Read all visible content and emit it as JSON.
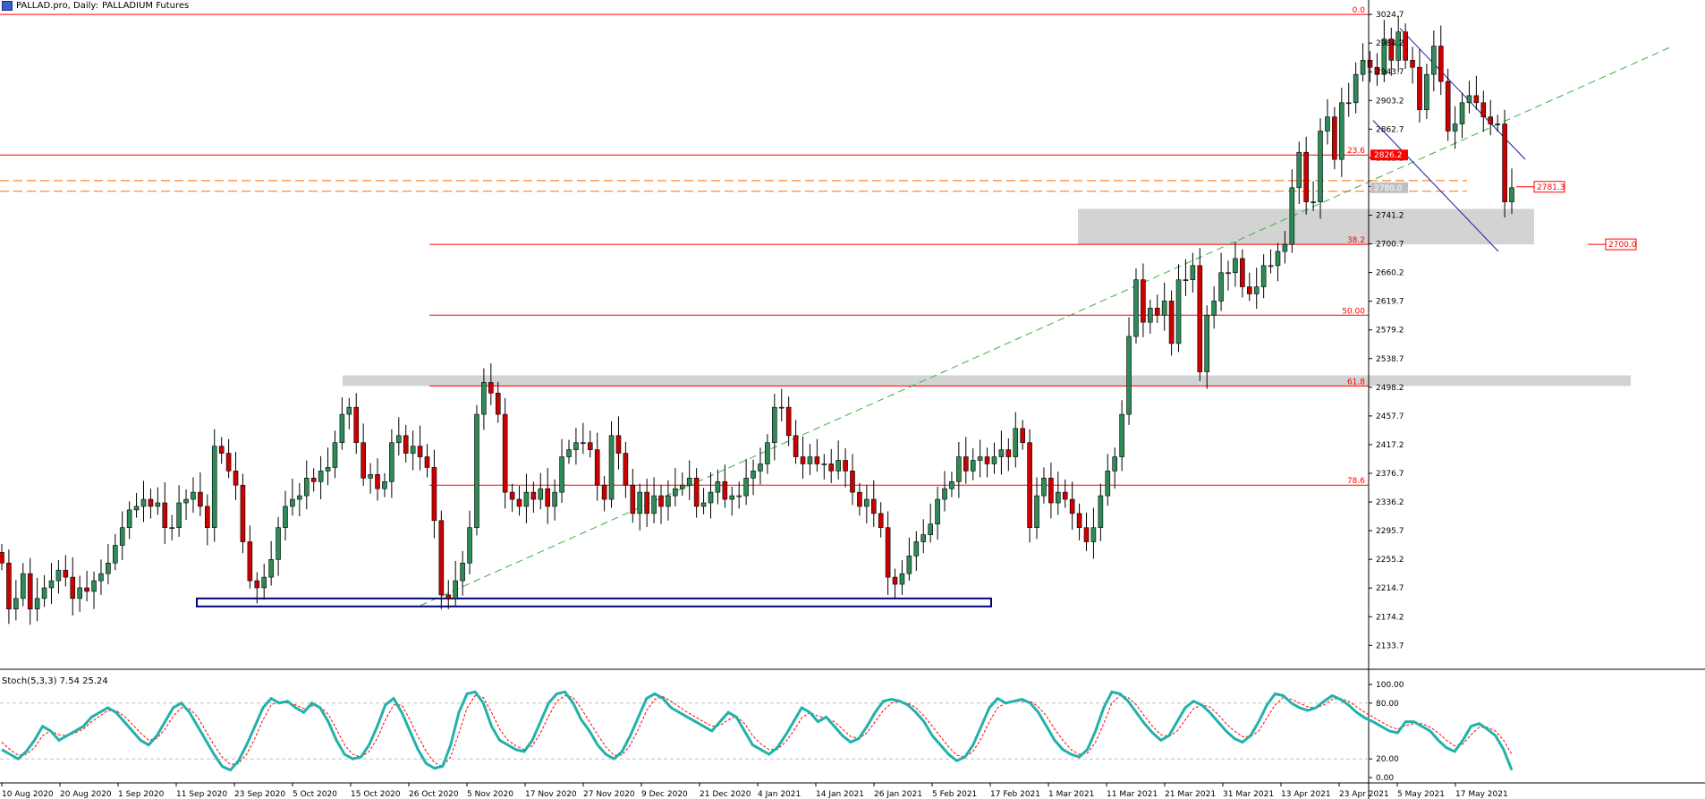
{
  "header": {
    "symbol": "PALLAD.pro, Daily:",
    "description": "PALLADIUM Futures"
  },
  "stoch_header": {
    "label": "Stoch(5,3,3)",
    "main_value": "7.54",
    "signal_value": "25.24"
  },
  "colors": {
    "bull": "#2e8b57",
    "bear": "#cc0000",
    "fib_line": "#ff0000",
    "trend_line": "#3cb043",
    "channel": "#1a1aa0",
    "zone": "#d3d3d3",
    "box": "#000080",
    "stoch_main": "#20b2aa",
    "stoch_signal": "#ff0000",
    "dashed_orange": "#ff6a00"
  },
  "chart_data": {
    "type": "candlestick",
    "price_axis": {
      "min": 2100,
      "max": 3040,
      "ticks": [
        "3024.7",
        "2984.2",
        "2943.7",
        "2903.2",
        "2862.7",
        "2822.2",
        "2781.7",
        "2741.2",
        "2700.7",
        "2660.2",
        "2619.7",
        "2579.2",
        "2538.7",
        "2498.2",
        "2457.7",
        "2417.2",
        "2376.7",
        "2336.2",
        "2295.7",
        "2255.2",
        "2214.7",
        "2174.2",
        "2133.7"
      ],
      "price_tags": [
        {
          "text": "2826.2",
          "value": 2826.2,
          "color": "#ff0000"
        },
        {
          "text": "2780.0",
          "value": 2780.0,
          "color": "#c0c0c0"
        }
      ]
    },
    "date_axis": [
      "10 Aug 2020",
      "20 Aug 2020",
      "1 Sep 2020",
      "11 Sep 2020",
      "23 Sep 2020",
      "5 Oct 2020",
      "15 Oct 2020",
      "26 Oct 2020",
      "5 Nov 2020",
      "17 Nov 2020",
      "27 Nov 2020",
      "9 Dec 2020",
      "21 Dec 2020",
      "4 Jan 2021",
      "14 Jan 2021",
      "26 Jan 2021",
      "5 Feb 2021",
      "17 Feb 2021",
      "1 Mar 2021",
      "11 Mar 2021",
      "21 Mar 2021",
      "31 Mar 2021",
      "13 Apr 2021",
      "23 Apr 2021",
      "5 May 2021",
      "17 May 2021"
    ],
    "fibonacci": [
      {
        "label": "0.0",
        "price": 3024.7
      },
      {
        "label": "23.6",
        "price": 2826.2
      },
      {
        "label": "38.2",
        "price": 2700.0
      },
      {
        "label": "50.00",
        "price": 2600.0
      },
      {
        "label": "61.8",
        "price": 2500.0
      },
      {
        "label": "78.6",
        "price": 2360.0
      }
    ],
    "annotations": [
      {
        "text": "2781.3",
        "price": 2781.3
      },
      {
        "text": "2700.0",
        "price": 2700.0
      }
    ],
    "closes": [
      2250,
      2185,
      2200,
      2235,
      2185,
      2200,
      2215,
      2225,
      2240,
      2230,
      2200,
      2215,
      2210,
      2225,
      2235,
      2250,
      2275,
      2300,
      2325,
      2330,
      2340,
      2330,
      2335,
      2300,
      2300,
      2335,
      2340,
      2350,
      2330,
      2300,
      2415,
      2405,
      2380,
      2360,
      2280,
      2225,
      2215,
      2230,
      2255,
      2300,
      2330,
      2340,
      2345,
      2370,
      2365,
      2380,
      2385,
      2420,
      2460,
      2470,
      2420,
      2370,
      2375,
      2355,
      2365,
      2420,
      2430,
      2405,
      2415,
      2400,
      2385,
      2310,
      2205,
      2200,
      2225,
      2250,
      2300,
      2460,
      2505,
      2490,
      2460,
      2350,
      2340,
      2330,
      2350,
      2340,
      2355,
      2330,
      2350,
      2400,
      2410,
      2420,
      2420,
      2410,
      2360,
      2340,
      2430,
      2405,
      2360,
      2320,
      2350,
      2320,
      2345,
      2330,
      2345,
      2355,
      2360,
      2370,
      2330,
      2335,
      2350,
      2365,
      2340,
      2345,
      2345,
      2370,
      2380,
      2390,
      2420,
      2470,
      2470,
      2430,
      2400,
      2390,
      2400,
      2390,
      2390,
      2380,
      2395,
      2380,
      2350,
      2330,
      2340,
      2320,
      2300,
      2230,
      2220,
      2235,
      2260,
      2280,
      2290,
      2305,
      2340,
      2355,
      2365,
      2400,
      2380,
      2395,
      2400,
      2390,
      2400,
      2410,
      2400,
      2440,
      2420,
      2300,
      2345,
      2370,
      2335,
      2350,
      2340,
      2320,
      2300,
      2280,
      2300,
      2345,
      2380,
      2400,
      2460,
      2570,
      2650,
      2590,
      2610,
      2600,
      2620,
      2560,
      2650,
      2650,
      2670,
      2520,
      2600,
      2620,
      2660,
      2660,
      2680,
      2640,
      2630,
      2640,
      2670,
      2670,
      2690,
      2700,
      2780,
      2830,
      2760,
      2760,
      2860,
      2880,
      2820,
      2900,
      2900,
      2940,
      2960,
      2950,
      2940,
      2990,
      2960,
      3000,
      2960,
      2950,
      2890,
      2940,
      2980,
      2930,
      2860,
      2870,
      2900,
      2910,
      2900,
      2880,
      2870,
      2870,
      2760,
      2780
    ]
  },
  "stoch_data": {
    "ticks": [
      "100.00",
      "80.00",
      "20.00",
      "0.00"
    ],
    "main": [
      30,
      25,
      20,
      28,
      40,
      55,
      50,
      40,
      45,
      50,
      55,
      65,
      70,
      75,
      70,
      60,
      50,
      40,
      35,
      45,
      60,
      75,
      80,
      70,
      55,
      40,
      25,
      12,
      8,
      18,
      35,
      55,
      75,
      85,
      80,
      82,
      75,
      70,
      80,
      75,
      60,
      40,
      25,
      20,
      22,
      35,
      55,
      78,
      85,
      70,
      50,
      30,
      15,
      10,
      12,
      35,
      70,
      90,
      92,
      80,
      55,
      40,
      35,
      30,
      28,
      40,
      60,
      80,
      90,
      92,
      80,
      62,
      50,
      35,
      25,
      20,
      28,
      45,
      65,
      85,
      90,
      85,
      75,
      70,
      65,
      60,
      55,
      50,
      60,
      70,
      65,
      50,
      35,
      30,
      25,
      32,
      45,
      60,
      75,
      70,
      60,
      65,
      55,
      45,
      38,
      42,
      55,
      70,
      82,
      84,
      82,
      78,
      70,
      60,
      45,
      35,
      25,
      18,
      22,
      35,
      55,
      75,
      85,
      80,
      82,
      84,
      80,
      70,
      55,
      40,
      30,
      25,
      22,
      30,
      50,
      75,
      92,
      90,
      82,
      70,
      58,
      48,
      40,
      45,
      60,
      75,
      82,
      78,
      70,
      60,
      50,
      42,
      38,
      45,
      60,
      78,
      90,
      88,
      80,
      75,
      72,
      75,
      82,
      88,
      84,
      78,
      70,
      64,
      60,
      55,
      50,
      48,
      60,
      60,
      55,
      50,
      40,
      32,
      28,
      40,
      55,
      58,
      52,
      45,
      30,
      8
    ],
    "signal": [
      38,
      30,
      24,
      25,
      32,
      45,
      50,
      46,
      45,
      48,
      52,
      60,
      66,
      72,
      72,
      66,
      57,
      48,
      40,
      42,
      52,
      66,
      75,
      74,
      65,
      50,
      35,
      22,
      14,
      15,
      25,
      42,
      62,
      78,
      82,
      80,
      78,
      74,
      77,
      76,
      68,
      52,
      35,
      25,
      22,
      28,
      42,
      62,
      78,
      78,
      62,
      44,
      28,
      16,
      12,
      22,
      48,
      75,
      88,
      86,
      70,
      52,
      40,
      34,
      30,
      34,
      48,
      66,
      82,
      88,
      86,
      74,
      60,
      46,
      33,
      24,
      24,
      35,
      52,
      72,
      84,
      87,
      82,
      76,
      70,
      65,
      60,
      55,
      56,
      62,
      66,
      58,
      45,
      36,
      30,
      30,
      38,
      50,
      64,
      70,
      66,
      64,
      60,
      52,
      44,
      42,
      48,
      60,
      72,
      80,
      82,
      80,
      75,
      66,
      55,
      44,
      33,
      24,
      22,
      28,
      42,
      60,
      75,
      80,
      82,
      82,
      82,
      76,
      66,
      52,
      40,
      30,
      25,
      26,
      38,
      58,
      80,
      88,
      86,
      78,
      66,
      55,
      46,
      44,
      50,
      62,
      74,
      78,
      76,
      68,
      58,
      50,
      44,
      44,
      50,
      64,
      78,
      86,
      84,
      80,
      76,
      75,
      78,
      84,
      85,
      82,
      76,
      70,
      65,
      60,
      55,
      52,
      56,
      58,
      58,
      54,
      48,
      40,
      34,
      36,
      46,
      54,
      54,
      50,
      40,
      25
    ]
  }
}
